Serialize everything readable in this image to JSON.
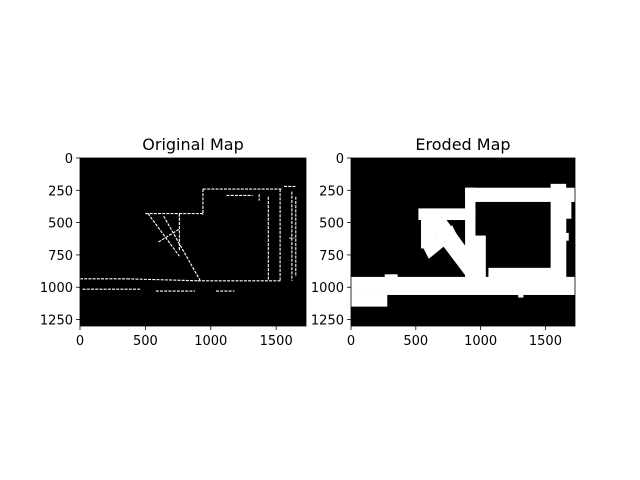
{
  "chart_data": [
    {
      "type": "heatmap",
      "title": "Original Map",
      "xlabel": "",
      "ylabel": "",
      "xlim": [
        0,
        1728
      ],
      "ylim": [
        1300,
        0
      ],
      "x_ticks": [
        0,
        500,
        1000,
        1500
      ],
      "y_ticks": [
        0,
        250,
        500,
        750,
        1000,
        1250
      ],
      "x_tick_labels": [
        "0",
        "500",
        "1000",
        "1500"
      ],
      "y_tick_labels": [
        "0",
        "250",
        "500",
        "750",
        "1000",
        "1250"
      ],
      "grid": false,
      "colormap": [
        "#000000",
        "#ffffff"
      ],
      "description_of_values": "binary occupancy map",
      "segments": [
        [
          0,
          935,
          360,
          935
        ],
        [
          360,
          935,
          900,
          950
        ],
        [
          900,
          950,
          1540,
          950
        ],
        [
          20,
          1015,
          460,
          1015
        ],
        [
          580,
          1030,
          880,
          1030
        ],
        [
          1040,
          1030,
          1180,
          1030
        ],
        [
          940,
          240,
          1540,
          240
        ],
        [
          1120,
          290,
          1320,
          290
        ],
        [
          500,
          430,
          950,
          430
        ],
        [
          1560,
          220,
          1650,
          220
        ],
        [
          940,
          240,
          940,
          440
        ],
        [
          1530,
          240,
          1530,
          950
        ],
        [
          1620,
          260,
          1620,
          950
        ],
        [
          1650,
          300,
          1650,
          920
        ],
        [
          520,
          430,
          760,
          760
        ],
        [
          640,
          450,
          920,
          950
        ],
        [
          760,
          430,
          760,
          720
        ],
        [
          600,
          650,
          760,
          550
        ],
        [
          1440,
          300,
          1440,
          940
        ],
        [
          1370,
          280,
          1370,
          330
        ],
        [
          1600,
          620,
          1640,
          620
        ]
      ]
    },
    {
      "type": "heatmap",
      "title": "Eroded Map",
      "xlabel": "",
      "ylabel": "",
      "xlim": [
        0,
        1728
      ],
      "ylim": [
        1300,
        0
      ],
      "x_ticks": [
        0,
        500,
        1000,
        1500
      ],
      "y_ticks": [
        0,
        250,
        500,
        750,
        1000,
        1250
      ],
      "x_tick_labels": [
        "0",
        "500",
        "1000",
        "1500"
      ],
      "y_tick_labels": [
        "0",
        "250",
        "500",
        "750",
        "1000",
        "1250"
      ],
      "grid": false,
      "colormap": [
        "#000000",
        "#ffffff"
      ],
      "description_of_values": "eroded binary occupancy map",
      "rects": [
        [
          0,
          920,
          1728,
          1060
        ],
        [
          0,
          1060,
          280,
          1150
        ],
        [
          880,
          230,
          1728,
          340
        ],
        [
          880,
          230,
          960,
          930
        ],
        [
          1540,
          200,
          1660,
          940
        ],
        [
          1600,
          300,
          1660,
          940
        ],
        [
          1640,
          310,
          1700,
          470
        ],
        [
          520,
          390,
          960,
          480
        ],
        [
          540,
          430,
          660,
          700
        ],
        [
          900,
          600,
          1040,
          930
        ],
        [
          1060,
          850,
          1560,
          940
        ],
        [
          1290,
          1040,
          1330,
          1080
        ],
        [
          260,
          900,
          360,
          940
        ],
        [
          1460,
          280,
          1500,
          330
        ],
        [
          1600,
          580,
          1680,
          640
        ]
      ],
      "polys": [
        [
          [
            560,
            480
          ],
          [
            680,
            400
          ],
          [
            1040,
            900
          ],
          [
            920,
            960
          ]
        ],
        [
          [
            560,
            700
          ],
          [
            780,
            520
          ],
          [
            820,
            600
          ],
          [
            600,
            780
          ]
        ]
      ]
    }
  ]
}
